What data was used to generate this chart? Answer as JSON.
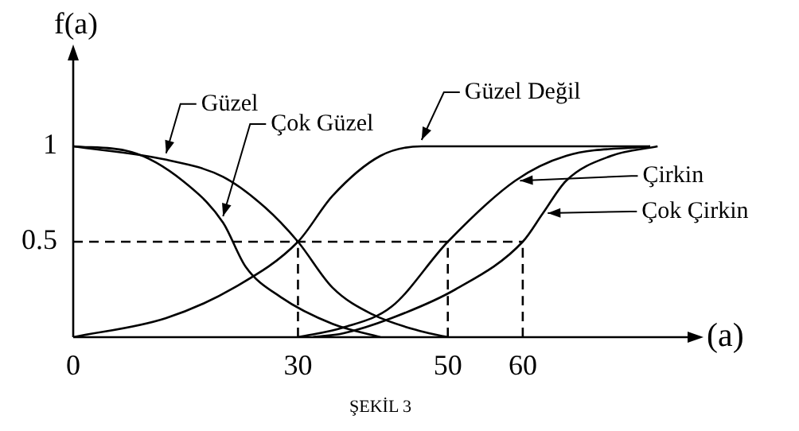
{
  "chart_data": {
    "type": "line",
    "xlabel": "(a)",
    "ylabel": "f(a)",
    "annotations": [
      "ŞEKİL 3"
    ],
    "xlim": [
      0,
      82
    ],
    "xticks": [
      0,
      30,
      50,
      60
    ],
    "ylim": [
      0,
      1.45
    ],
    "yticks": [
      0.5,
      1
    ],
    "grid": false,
    "legend": "right",
    "marker": "none",
    "line_style": "solid",
    "series": [
      {
        "name": "Güzel",
        "color": "#000000",
        "x": [
          0,
          12.4,
          20,
          25.6,
          30,
          34.6,
          39.9,
          46.5,
          50
        ],
        "values": [
          1,
          0.93,
          0.84,
          0.68,
          0.5,
          0.26,
          0.12,
          0.03,
          0
        ]
      },
      {
        "name": "Çok Güzel",
        "color": "#000000",
        "x": [
          0,
          7.8,
          14.6,
          20,
          23,
          27.7,
          34.6,
          41
        ],
        "values": [
          1,
          0.97,
          0.82,
          0.6,
          0.37,
          0.21,
          0.07,
          0
        ]
      },
      {
        "name": "Güzel Değil",
        "color": "#000000",
        "x": [
          0,
          12.4,
          21.5,
          30,
          34.6,
          41,
          46.5,
          60,
          77
        ],
        "values": [
          0,
          0.1,
          0.26,
          0.5,
          0.74,
          0.95,
          1,
          1,
          1
        ]
      },
      {
        "name": "Çirkin",
        "color": "#000000",
        "x": [
          30,
          36,
          42.5,
          50,
          59,
          65.8,
          77
        ],
        "values": [
          0,
          0.05,
          0.16,
          0.5,
          0.82,
          0.95,
          1
        ]
      },
      {
        "name": "Çok Çirkin",
        "color": "#000000",
        "x": [
          32,
          36,
          42.5,
          51,
          60,
          62.7,
          65.8,
          71.8,
          78
        ],
        "values": [
          0,
          0.02,
          0.1,
          0.25,
          0.5,
          0.65,
          0.82,
          0.95,
          1
        ]
      },
      {
        "color": "#000000",
        "line_style": "dashed",
        "x": [
          0,
          60
        ],
        "values": [
          0.5,
          0.5
        ]
      },
      {
        "color": "#000000",
        "line_style": "dashed",
        "x": [
          30,
          30
        ],
        "values": [
          0,
          0.5
        ]
      },
      {
        "color": "#000000",
        "line_style": "dashed",
        "x": [
          50,
          50
        ],
        "values": [
          0,
          0.5
        ]
      },
      {
        "color": "#000000",
        "line_style": "dashed",
        "x": [
          60,
          60
        ],
        "values": [
          0,
          0.5
        ]
      }
    ]
  }
}
